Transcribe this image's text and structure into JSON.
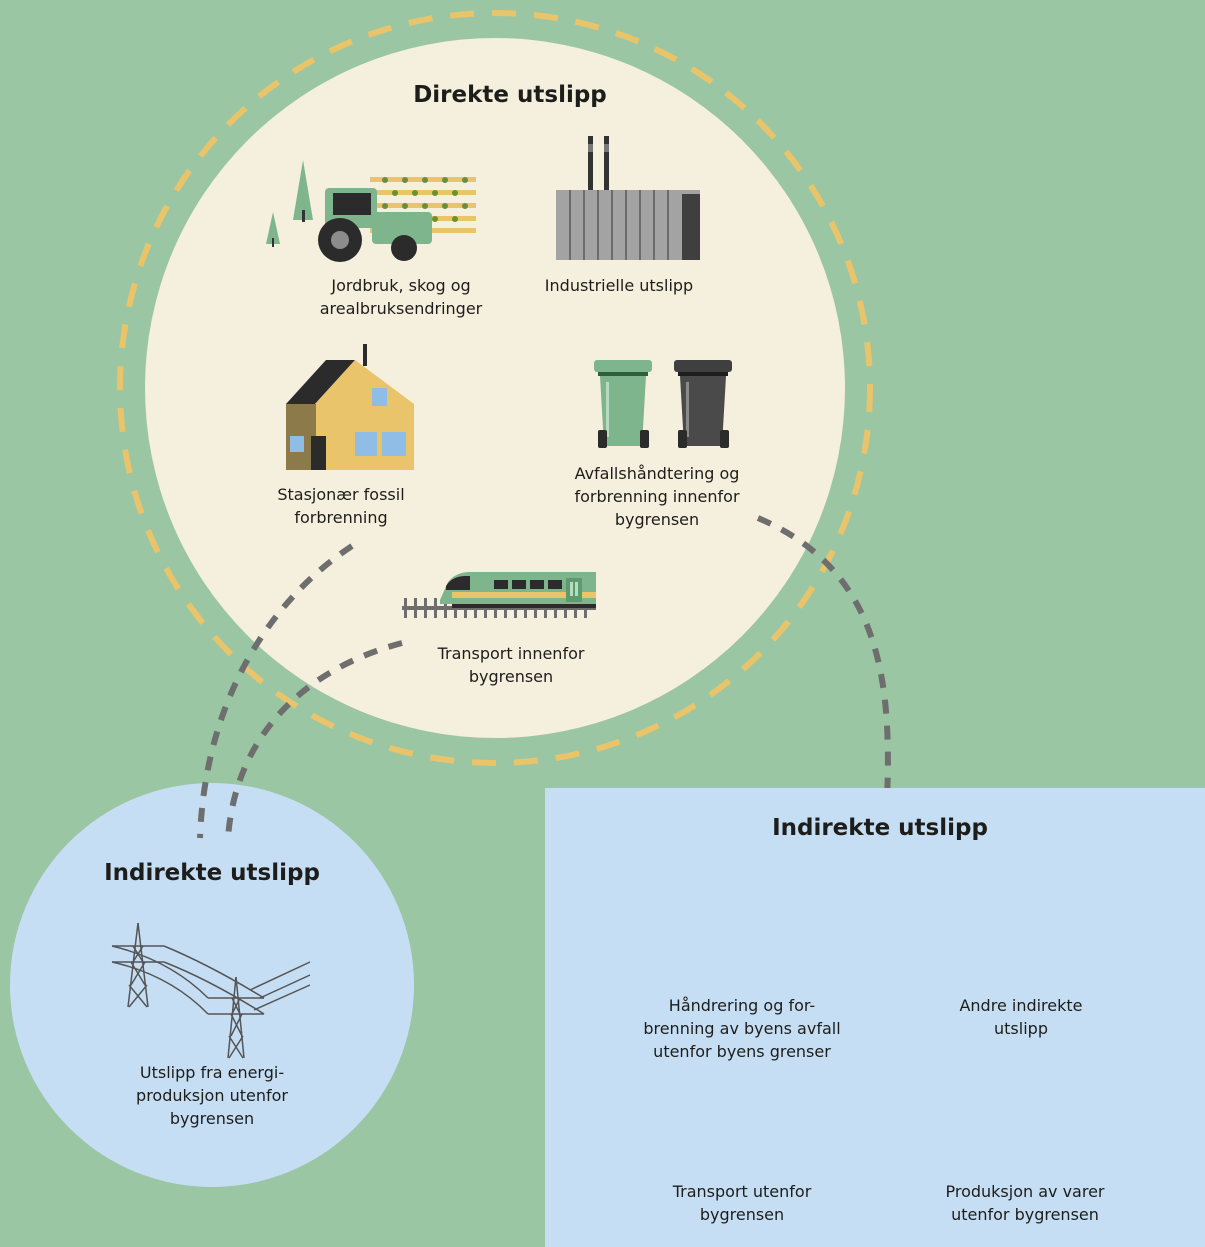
{
  "direct": {
    "title": "Direkte utslipp",
    "items": [
      {
        "label": "Jordbruk, skog og\narealbruksendringer",
        "icon": "tractor-field-icon"
      },
      {
        "label": "Industrielle utslipp",
        "icon": "factory-icon"
      },
      {
        "label": "Stasjonær fossil\nforbrenning",
        "icon": "house-icon"
      },
      {
        "label": "Avfallshåndtering og\nforbrenning innenfor\nbygrensen",
        "icon": "waste-bins-icon"
      },
      {
        "label": "Transport innenfor\nbygrensen",
        "icon": "train-icon"
      }
    ]
  },
  "indirect_energy": {
    "title": "Indirekte utslipp",
    "items": [
      {
        "label": "Utslipp fra energi-\nproduksjon utenfor\nbygrensen",
        "icon": "power-line-icon"
      }
    ]
  },
  "indirect_other": {
    "title": "Indirekte utslipp",
    "items": [
      {
        "label": "Håndrering og for-\nbrenning av byens avfall\nutenfor byens grenser",
        "icon": "waste-bins-icon"
      },
      {
        "label": "Andre indirekte\nutslipp",
        "icon": "container-icon"
      },
      {
        "label": "Transport utenfor\nbygrensen",
        "icon": "airplane-icon"
      },
      {
        "label": "Produksjon av varer\nutenfor bygrensen",
        "icon": "factory-icon"
      }
    ]
  },
  "colors": {
    "background": "#9ac6a4",
    "direct_circle": "#f5efdd",
    "indirect_fill": "#c6def4",
    "dashed_ring": "#e9c46a",
    "connector": "#6e6e6e"
  }
}
